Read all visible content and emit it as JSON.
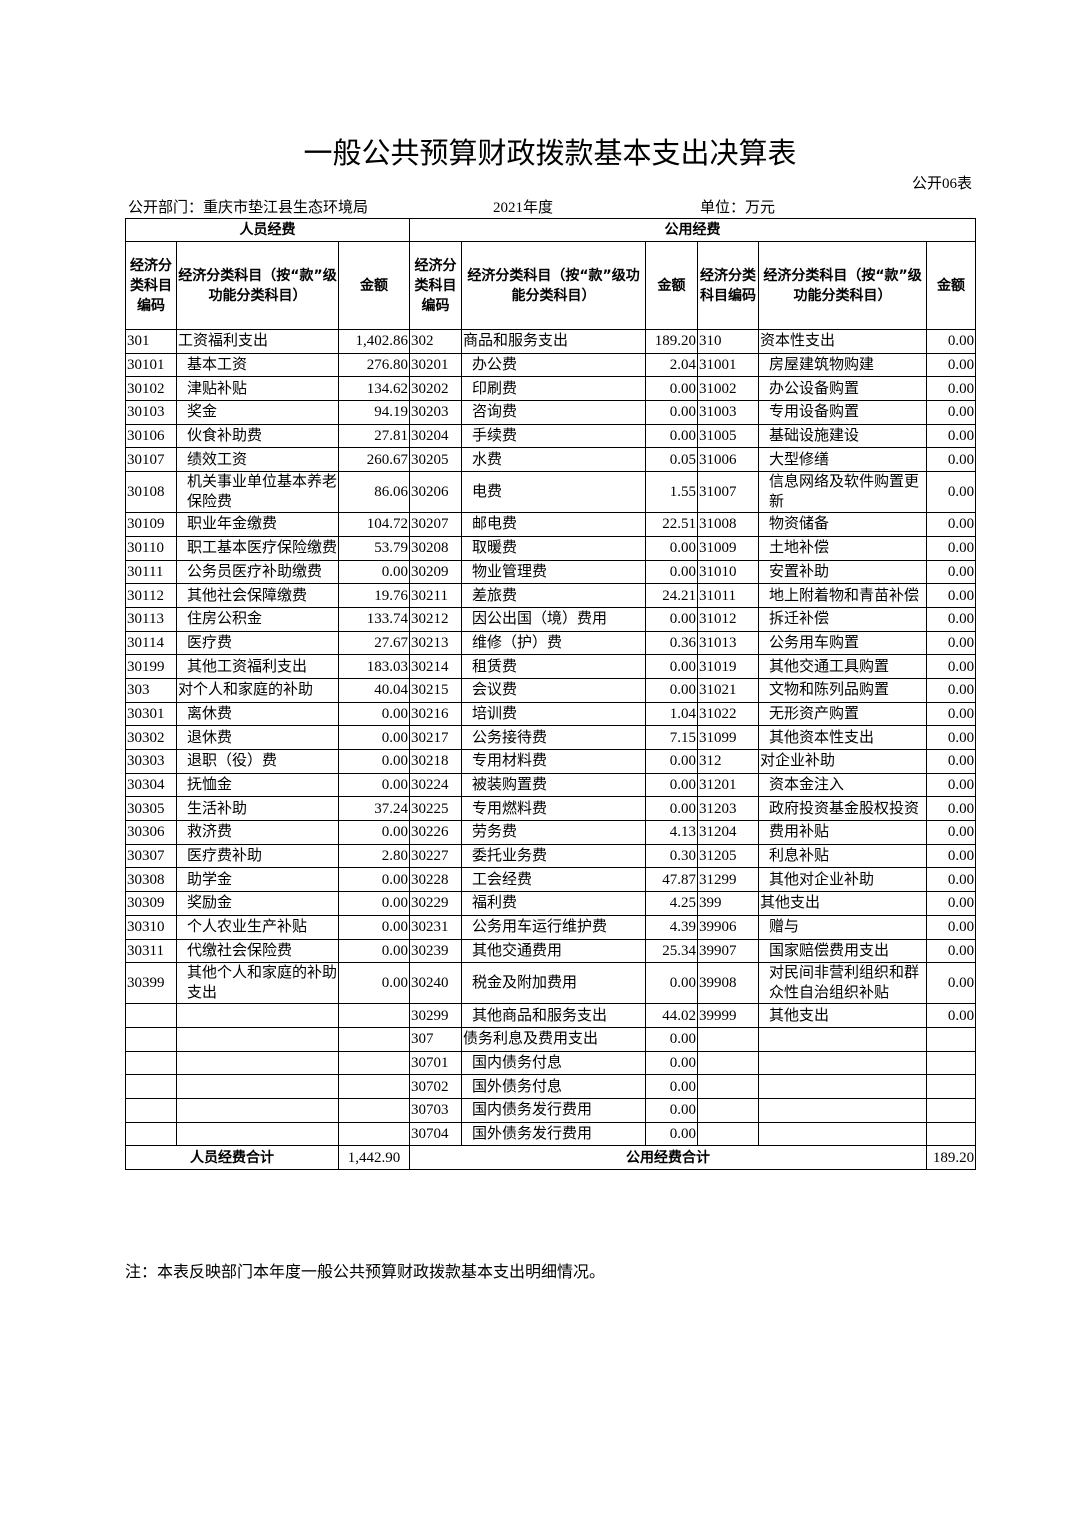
{
  "header": {
    "title": "一般公共预算财政拨款基本支出决算表",
    "form_no": "公开06表",
    "department": "公开部门：重庆市垫江县生态环境局",
    "year": "2021年度",
    "unit": "单位：万元"
  },
  "table": {
    "groups": [
      "人员经费",
      "公用经费"
    ],
    "headers": [
      "经济分类科目编码",
      "经济分类科目（按“款”级功能分类科目）",
      "金额",
      "经济分类科目编码",
      "经济分类科目（按“款”级功能分类科目）",
      "金额",
      "经济分类科目编码",
      "经济分类科目（按“款”级功能分类科目）",
      "金额"
    ],
    "rows": [
      [
        "301",
        "工资福利支出",
        "1,402.86",
        "302",
        "商品和服务支出",
        "189.20",
        "310",
        "资本性支出",
        "0.00"
      ],
      [
        "30101",
        "基本工资",
        "276.80",
        "30201",
        "办公费",
        "2.04",
        "31001",
        "房屋建筑物购建",
        "0.00"
      ],
      [
        "30102",
        "津贴补贴",
        "134.62",
        "30202",
        "印刷费",
        "0.00",
        "31002",
        "办公设备购置",
        "0.00"
      ],
      [
        "30103",
        "奖金",
        "94.19",
        "30203",
        "咨询费",
        "0.00",
        "31003",
        "专用设备购置",
        "0.00"
      ],
      [
        "30106",
        "伙食补助费",
        "27.81",
        "30204",
        "手续费",
        "0.00",
        "31005",
        "基础设施建设",
        "0.00"
      ],
      [
        "30107",
        "绩效工资",
        "260.67",
        "30205",
        "水费",
        "0.05",
        "31006",
        "大型修缮",
        "0.00"
      ],
      [
        "30108",
        "机关事业单位基本养老保险费",
        "86.06",
        "30206",
        "电费",
        "1.55",
        "31007",
        "信息网络及软件购置更新",
        "0.00"
      ],
      [
        "30109",
        "职业年金缴费",
        "104.72",
        "30207",
        "邮电费",
        "22.51",
        "31008",
        "物资储备",
        "0.00"
      ],
      [
        "30110",
        "职工基本医疗保险缴费",
        "53.79",
        "30208",
        "取暖费",
        "0.00",
        "31009",
        "土地补偿",
        "0.00"
      ],
      [
        "30111",
        "公务员医疗补助缴费",
        "0.00",
        "30209",
        "物业管理费",
        "0.00",
        "31010",
        "安置补助",
        "0.00"
      ],
      [
        "30112",
        "其他社会保障缴费",
        "19.76",
        "30211",
        "差旅费",
        "24.21",
        "31011",
        "地上附着物和青苗补偿",
        "0.00"
      ],
      [
        "30113",
        "住房公积金",
        "133.74",
        "30212",
        "因公出国（境）费用",
        "0.00",
        "31012",
        "拆迁补偿",
        "0.00"
      ],
      [
        "30114",
        "医疗费",
        "27.67",
        "30213",
        "维修（护）费",
        "0.36",
        "31013",
        "公务用车购置",
        "0.00"
      ],
      [
        "30199",
        "其他工资福利支出",
        "183.03",
        "30214",
        "租赁费",
        "0.00",
        "31019",
        "其他交通工具购置",
        "0.00"
      ],
      [
        "303",
        "对个人和家庭的补助",
        "40.04",
        "30215",
        "会议费",
        "0.00",
        "31021",
        "文物和陈列品购置",
        "0.00"
      ],
      [
        "30301",
        "离休费",
        "0.00",
        "30216",
        "培训费",
        "1.04",
        "31022",
        "无形资产购置",
        "0.00"
      ],
      [
        "30302",
        "退休费",
        "0.00",
        "30217",
        "公务接待费",
        "7.15",
        "31099",
        "其他资本性支出",
        "0.00"
      ],
      [
        "30303",
        "退职（役）费",
        "0.00",
        "30218",
        "专用材料费",
        "0.00",
        "312",
        "对企业补助",
        "0.00"
      ],
      [
        "30304",
        "抚恤金",
        "0.00",
        "30224",
        "被装购置费",
        "0.00",
        "31201",
        "资本金注入",
        "0.00"
      ],
      [
        "30305",
        "生活补助",
        "37.24",
        "30225",
        "专用燃料费",
        "0.00",
        "31203",
        "政府投资基金股权投资",
        "0.00"
      ],
      [
        "30306",
        "救济费",
        "0.00",
        "30226",
        "劳务费",
        "4.13",
        "31204",
        "费用补贴",
        "0.00"
      ],
      [
        "30307",
        "医疗费补助",
        "2.80",
        "30227",
        "委托业务费",
        "0.30",
        "31205",
        "利息补贴",
        "0.00"
      ],
      [
        "30308",
        "助学金",
        "0.00",
        "30228",
        "工会经费",
        "47.87",
        "31299",
        "其他对企业补助",
        "0.00"
      ],
      [
        "30309",
        "奖励金",
        "0.00",
        "30229",
        "福利费",
        "4.25",
        "399",
        "其他支出",
        "0.00"
      ],
      [
        "30310",
        "个人农业生产补贴",
        "0.00",
        "30231",
        "公务用车运行维护费",
        "4.39",
        "39906",
        "赠与",
        "0.00"
      ],
      [
        "30311",
        "代缴社会保险费",
        "0.00",
        "30239",
        "其他交通费用",
        "25.34",
        "39907",
        "国家赔偿费用支出",
        "0.00"
      ],
      [
        "30399",
        "其他个人和家庭的补助支出",
        "0.00",
        "30240",
        "税金及附加费用",
        "0.00",
        "39908",
        "对民间非营利组织和群众性自治组织补贴",
        "0.00"
      ],
      [
        null,
        null,
        null,
        "30299",
        "其他商品和服务支出",
        "44.02",
        "39999",
        "其他支出",
        "0.00"
      ],
      [
        null,
        null,
        null,
        "307",
        "债务利息及费用支出",
        "0.00",
        null,
        null,
        null
      ],
      [
        null,
        null,
        null,
        "30701",
        "国内债务付息",
        "0.00",
        null,
        null,
        null
      ],
      [
        null,
        null,
        null,
        "30702",
        "国外债务付息",
        "0.00",
        null,
        null,
        null
      ],
      [
        null,
        null,
        null,
        "30703",
        "国内债务发行费用",
        "0.00",
        null,
        null,
        null
      ],
      [
        null,
        null,
        null,
        "30704",
        "国外债务发行费用",
        "0.00",
        null,
        null,
        null
      ]
    ],
    "totals": {
      "personnel_label": "人员经费合计",
      "personnel_amount": "1,442.90",
      "public_label": "公用经费合计",
      "public_amount": "189.20"
    }
  },
  "note": "注：本表反映部门本年度一般公共预算财政拨款基本支出明细情况。"
}
